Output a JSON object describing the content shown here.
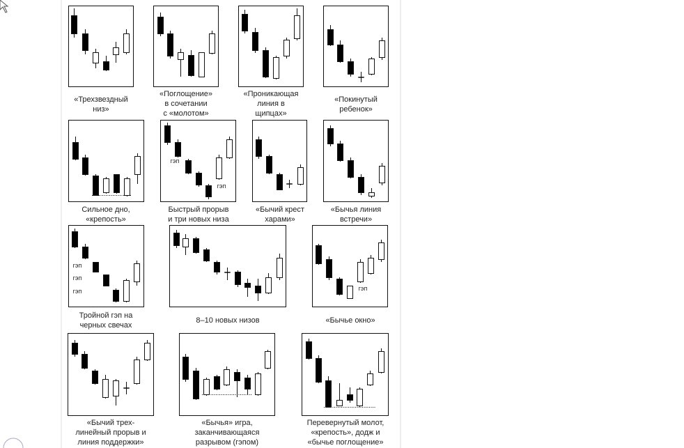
{
  "captions": [
    [
      "«Трехзвездный",
      "низ»"
    ],
    [
      "«Поглощение»",
      "в сочетании",
      "с «молотом»"
    ],
    [
      "«Проникающая",
      "линия в",
      "щипцах»"
    ],
    [
      "«Покинутый",
      "ребенок»"
    ],
    [
      "Сильное дно,",
      "«крепость»"
    ],
    [
      "Быстрый прорыв",
      "и три новых низа"
    ],
    [
      "«Бычий крест",
      "харами»"
    ],
    [
      "«Бычья линия",
      "встречи»"
    ],
    [
      "Тройной гэп на",
      "черных свечах"
    ],
    [
      "8–10 новых низов"
    ],
    [
      "«Бычье окно»"
    ],
    [
      "«Бычий трех-",
      "линейный прорыв и",
      "линия поддержки»"
    ],
    [
      "«Бычья» игра,",
      "заканчивающаяся",
      "разрывом (гэпом)"
    ],
    [
      "Перевернутый молот,",
      "«крепость», додж и",
      "«бычье поглощение»"
    ]
  ],
  "gap_labels": [
    "гэп",
    "гэп",
    "гэп",
    "гэп",
    "гэп",
    "гэп"
  ]
}
